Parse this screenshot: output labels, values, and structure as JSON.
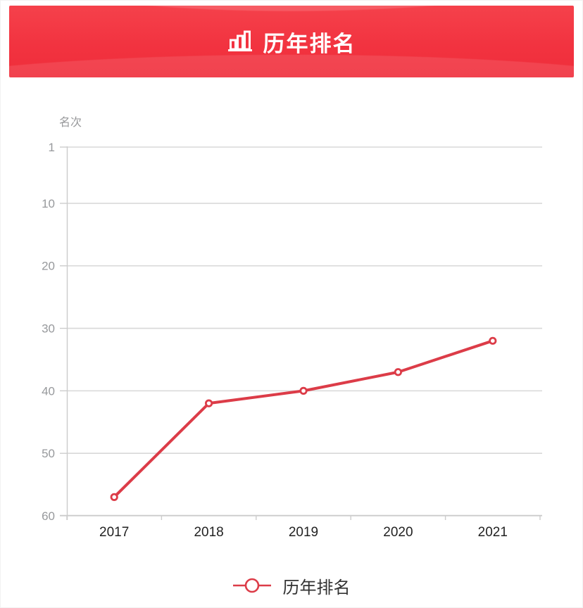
{
  "header": {
    "title": "历年排名",
    "icon": "bar-chart-icon"
  },
  "chart_data": {
    "type": "line",
    "title": "历年排名",
    "categories": [
      "2017",
      "2018",
      "2019",
      "2020",
      "2021"
    ],
    "series": [
      {
        "name": "历年排名",
        "values": [
          57,
          42,
          40,
          37,
          32
        ]
      }
    ],
    "xlabel": "",
    "ylabel": "名次",
    "y_ticks": [
      1,
      10,
      20,
      30,
      40,
      50,
      60
    ],
    "ylim": [
      1,
      60
    ],
    "y_axis_inverted": true,
    "grid": true,
    "legend_position": "bottom",
    "marker": "hollow-circle"
  },
  "legend": {
    "label": "历年排名"
  },
  "colors": {
    "banner_red": "#f23340",
    "line_red": "#dc3c48",
    "grid_line": "#d8d8d8",
    "axis_line": "#cccccc",
    "y_tick_label": "#97999c",
    "x_tick_label": "#222222",
    "legend_text": "#333333"
  }
}
